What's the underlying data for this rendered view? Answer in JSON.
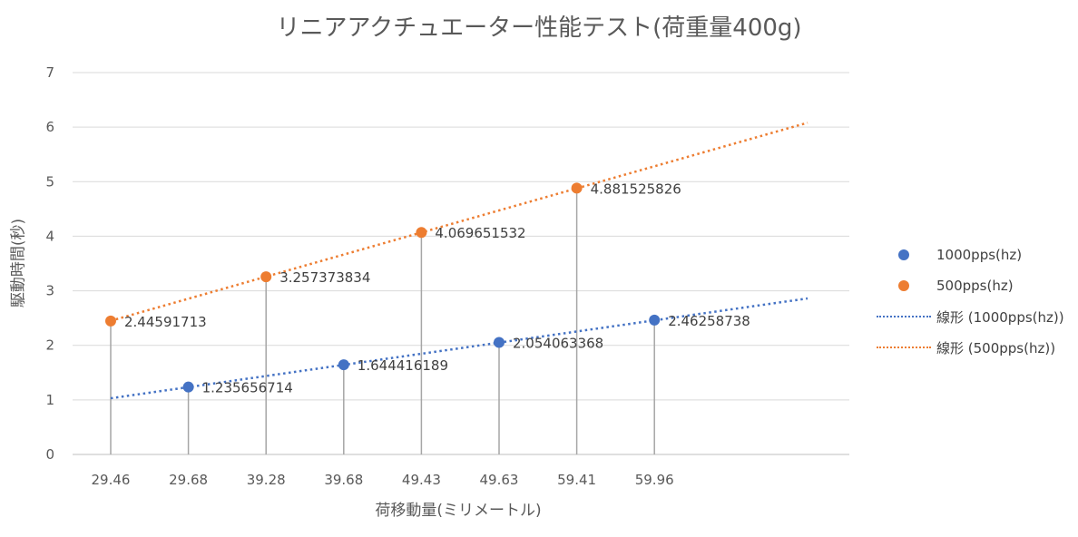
{
  "chart_data": {
    "type": "scatter",
    "title": "リニアアクチュエーター性能テスト(荷重量400g)",
    "xlabel": "荷移動量(ミリメートル)",
    "ylabel": "駆動時間(秒)",
    "categories": [
      "29.46",
      "29.68",
      "39.28",
      "39.68",
      "49.43",
      "49.63",
      "59.41",
      "59.96"
    ],
    "ylim": [
      0,
      7
    ],
    "yticks": [
      0,
      1,
      2,
      3,
      4,
      5,
      6,
      7
    ],
    "grid": true,
    "legend_position": "right",
    "series": [
      {
        "name": "1000pps(hz)",
        "color": "#4472c4",
        "points": [
          {
            "x": "29.68",
            "y": 1.235656714,
            "label": "1.235656714"
          },
          {
            "x": "39.68",
            "y": 1.644416189,
            "label": "1.644416189"
          },
          {
            "x": "49.63",
            "y": 2.054063368,
            "label": "2.054063368"
          },
          {
            "x": "59.96",
            "y": 2.46258738,
            "label": "2.46258738"
          }
        ]
      },
      {
        "name": "500pps(hz)",
        "color": "#ed7d31",
        "points": [
          {
            "x": "29.46",
            "y": 2.44591713,
            "label": "2.44591713"
          },
          {
            "x": "39.28",
            "y": 3.257373834,
            "label": "3.257373834"
          },
          {
            "x": "49.43",
            "y": 4.069651532,
            "label": "4.069651532"
          },
          {
            "x": "59.41",
            "y": 4.881525826,
            "label": "4.881525826"
          }
        ]
      }
    ],
    "trendlines": [
      {
        "name": "線形 (1000pps(hz))",
        "color": "#4472c4",
        "style": "dotted",
        "from": {
          "x": "29.46",
          "y": 1.03
        },
        "to_y_at_axis_end": 2.86
      },
      {
        "name": "線形 (500pps(hz))",
        "color": "#ed7d31",
        "style": "dotted",
        "from": {
          "x": "29.46",
          "y": 2.45
        },
        "to_y_at_axis_end": 6.08
      }
    ],
    "drop_lines": true
  },
  "legend": {
    "items": [
      {
        "label": "1000pps(hz)",
        "kind": "marker",
        "color": "#4472c4"
      },
      {
        "label": "500pps(hz)",
        "kind": "marker",
        "color": "#ed7d31"
      },
      {
        "label": "線形 (1000pps(hz))",
        "kind": "dotted-line",
        "color": "#4472c4"
      },
      {
        "label": "線形 (500pps(hz))",
        "kind": "dotted-line",
        "color": "#ed7d31"
      }
    ]
  }
}
